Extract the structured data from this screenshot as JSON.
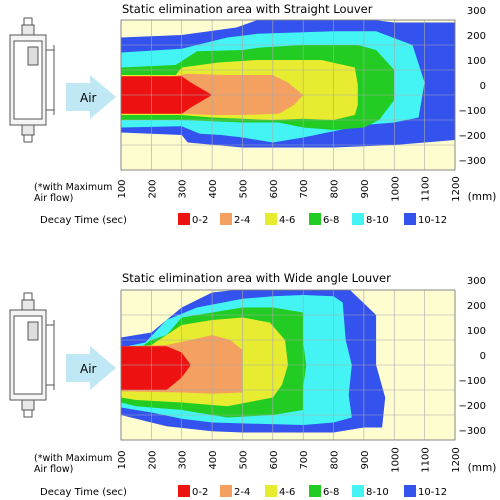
{
  "chart_data": [
    {
      "type": "heatmap",
      "title": "Static elimination area with Straight Louver",
      "x_ticks": [
        "100",
        "200",
        "300",
        "400",
        "500",
        "600",
        "700",
        "800",
        "900",
        "1000",
        "1100",
        "1200"
      ],
      "y_ticks": [
        "300",
        "200",
        "100",
        "0",
        "−100",
        "−200",
        "−300"
      ],
      "x_unit": "(mm)",
      "xlim": [
        100,
        1200
      ],
      "ylim": [
        -300,
        300
      ],
      "grid": true,
      "zones": [
        {
          "level": "10-12",
          "outline": [
            [
              100,
              230
            ],
            [
              300,
              240
            ],
            [
              480,
              270
            ],
            [
              560,
              305
            ],
            [
              900,
              305
            ],
            [
              1000,
              290
            ],
            [
              1200,
              290
            ],
            [
              1200,
              -180
            ],
            [
              1100,
              -190
            ],
            [
              1000,
              -200
            ],
            [
              800,
              -210
            ],
            [
              700,
              -210
            ],
            [
              600,
              -210
            ],
            [
              500,
              -210
            ],
            [
              320,
              -190
            ],
            [
              300,
              -160
            ],
            [
              100,
              -150
            ]
          ]
        },
        {
          "level": "8-10",
          "outline": [
            [
              100,
              170
            ],
            [
              300,
              185
            ],
            [
              450,
              230
            ],
            [
              550,
              245
            ],
            [
              800,
              255
            ],
            [
              940,
              255
            ],
            [
              1060,
              200
            ],
            [
              1100,
              50
            ],
            [
              1080,
              -90
            ],
            [
              1000,
              -110
            ],
            [
              900,
              -120
            ],
            [
              700,
              -170
            ],
            [
              600,
              -190
            ],
            [
              500,
              -170
            ],
            [
              430,
              -160
            ],
            [
              360,
              -155
            ],
            [
              300,
              -125
            ],
            [
              100,
              -130
            ]
          ]
        },
        {
          "level": "6-8",
          "outline": [
            [
              100,
              110
            ],
            [
              280,
              120
            ],
            [
              350,
              175
            ],
            [
              500,
              180
            ],
            [
              560,
              190
            ],
            [
              700,
              200
            ],
            [
              880,
              200
            ],
            [
              940,
              180
            ],
            [
              1000,
              100
            ],
            [
              1000,
              -20
            ],
            [
              950,
              -100
            ],
            [
              900,
              -130
            ],
            [
              800,
              -140
            ],
            [
              700,
              -130
            ],
            [
              620,
              -110
            ],
            [
              500,
              -110
            ],
            [
              300,
              -100
            ],
            [
              100,
              -100
            ]
          ]
        },
        {
          "level": "4-6",
          "outline": [
            [
              100,
              80
            ],
            [
              280,
              80
            ],
            [
              300,
              110
            ],
            [
              420,
              130
            ],
            [
              550,
              140
            ],
            [
              760,
              140
            ],
            [
              870,
              110
            ],
            [
              880,
              40
            ],
            [
              880,
              -40
            ],
            [
              870,
              -80
            ],
            [
              800,
              -100
            ],
            [
              700,
              -95
            ],
            [
              600,
              -100
            ],
            [
              400,
              -90
            ],
            [
              300,
              -80
            ],
            [
              100,
              -80
            ]
          ]
        },
        {
          "level": "2-4",
          "outline": [
            [
              100,
              75
            ],
            [
              270,
              75
            ],
            [
              320,
              85
            ],
            [
              450,
              80
            ],
            [
              600,
              80
            ],
            [
              650,
              50
            ],
            [
              700,
              0
            ],
            [
              670,
              -40
            ],
            [
              620,
              -75
            ],
            [
              500,
              -80
            ],
            [
              400,
              -80
            ],
            [
              300,
              -75
            ],
            [
              100,
              -75
            ]
          ]
        },
        {
          "level": "0-2",
          "outline": [
            [
              100,
              75
            ],
            [
              300,
              75
            ],
            [
              330,
              50
            ],
            [
              400,
              0
            ],
            [
              330,
              -50
            ],
            [
              300,
              -75
            ],
            [
              100,
              -75
            ]
          ]
        }
      ],
      "legend": {
        "title": "Decay Time (sec)",
        "entries": [
          {
            "label": "0-2",
            "color": "#ee1111"
          },
          {
            "label": "2-4",
            "color": "#f4a060"
          },
          {
            "label": "4-6",
            "color": "#e7ec30"
          },
          {
            "label": "6-8",
            "color": "#22cc22"
          },
          {
            "label": "8-10",
            "color": "#44f4f4"
          },
          {
            "label": "10-12",
            "color": "#3352ee"
          }
        ]
      },
      "background_color": "#fdfdd0",
      "side_labels": {
        "arrow": "Air",
        "note_line1": "(*with Maximum",
        "note_line2": "Air flow)"
      }
    },
    {
      "type": "heatmap",
      "title": "Static elimination area with Wide angle Louver",
      "x_ticks": [
        "100",
        "200",
        "300",
        "400",
        "500",
        "600",
        "700",
        "800",
        "900",
        "1000",
        "1100",
        "1200"
      ],
      "y_ticks": [
        "300",
        "200",
        "100",
        "0",
        "−100",
        "−200",
        "−300"
      ],
      "x_unit": "(mm)",
      "xlim": [
        100,
        1200
      ],
      "ylim": [
        -300,
        300
      ],
      "grid": true,
      "zones": [
        {
          "level": "10-12",
          "outline": [
            [
              100,
              110
            ],
            [
              200,
              130
            ],
            [
              300,
              230
            ],
            [
              400,
              290
            ],
            [
              550,
              310
            ],
            [
              700,
              310
            ],
            [
              850,
              305
            ],
            [
              940,
              200
            ],
            [
              940,
              0
            ],
            [
              970,
              -130
            ],
            [
              960,
              -250
            ],
            [
              900,
              -250
            ],
            [
              800,
              -270
            ],
            [
              700,
              -270
            ],
            [
              600,
              -270
            ],
            [
              500,
              -270
            ],
            [
              400,
              -265
            ],
            [
              250,
              -245
            ],
            [
              150,
              -215
            ],
            [
              100,
              -200
            ]
          ]
        },
        {
          "level": "8-10",
          "outline": [
            [
              100,
              70
            ],
            [
              180,
              90
            ],
            [
              250,
              180
            ],
            [
              350,
              230
            ],
            [
              500,
              265
            ],
            [
              600,
              275
            ],
            [
              700,
              280
            ],
            [
              800,
              275
            ],
            [
              830,
              250
            ],
            [
              840,
              100
            ],
            [
              860,
              0
            ],
            [
              850,
              -120
            ],
            [
              860,
              -210
            ],
            [
              800,
              -230
            ],
            [
              700,
              -240
            ],
            [
              550,
              -235
            ],
            [
              400,
              -230
            ],
            [
              300,
              -215
            ],
            [
              200,
              -190
            ],
            [
              100,
              -170
            ]
          ]
        },
        {
          "level": "6-8",
          "outline": [
            [
              100,
              60
            ],
            [
              150,
              60
            ],
            [
              200,
              100
            ],
            [
              250,
              120
            ],
            [
              300,
              190
            ],
            [
              400,
              210
            ],
            [
              500,
              230
            ],
            [
              600,
              230
            ],
            [
              700,
              210
            ],
            [
              700,
              90
            ],
            [
              710,
              0
            ],
            [
              700,
              -90
            ],
            [
              700,
              -180
            ],
            [
              600,
              -200
            ],
            [
              450,
              -210
            ],
            [
              300,
              -180
            ],
            [
              150,
              -165
            ],
            [
              100,
              -150
            ]
          ]
        },
        {
          "level": "4-6",
          "outline": [
            [
              100,
              60
            ],
            [
              200,
              80
            ],
            [
              300,
              160
            ],
            [
              400,
              180
            ],
            [
              500,
              190
            ],
            [
              590,
              170
            ],
            [
              640,
              100
            ],
            [
              650,
              0
            ],
            [
              630,
              -80
            ],
            [
              600,
              -130
            ],
            [
              450,
              -165
            ],
            [
              300,
              -150
            ],
            [
              150,
              -140
            ],
            [
              100,
              -130
            ]
          ]
        },
        {
          "level": "2-4",
          "outline": [
            [
              100,
              75
            ],
            [
              250,
              80
            ],
            [
              330,
              100
            ],
            [
              400,
              120
            ],
            [
              460,
              100
            ],
            [
              500,
              60
            ],
            [
              500,
              -110
            ],
            [
              400,
              -115
            ],
            [
              300,
              -110
            ],
            [
              100,
              -105
            ]
          ]
        },
        {
          "level": "0-2",
          "outline": [
            [
              100,
              75
            ],
            [
              250,
              75
            ],
            [
              300,
              50
            ],
            [
              330,
              0
            ],
            [
              300,
              -50
            ],
            [
              250,
              -100
            ],
            [
              100,
              -100
            ]
          ]
        }
      ],
      "legend": {
        "title": "Decay Time (sec)",
        "entries": [
          {
            "label": "0-2",
            "color": "#ee1111"
          },
          {
            "label": "2-4",
            "color": "#f4a060"
          },
          {
            "label": "4-6",
            "color": "#e7ec30"
          },
          {
            "label": "6-8",
            "color": "#22cc22"
          },
          {
            "label": "8-10",
            "color": "#44f4f4"
          },
          {
            "label": "10-12",
            "color": "#3352ee"
          }
        ]
      },
      "background_color": "#fdfdd0",
      "side_labels": {
        "arrow": "Air",
        "note_line1": "(*with Maximum",
        "note_line2": "Air flow)"
      }
    }
  ]
}
